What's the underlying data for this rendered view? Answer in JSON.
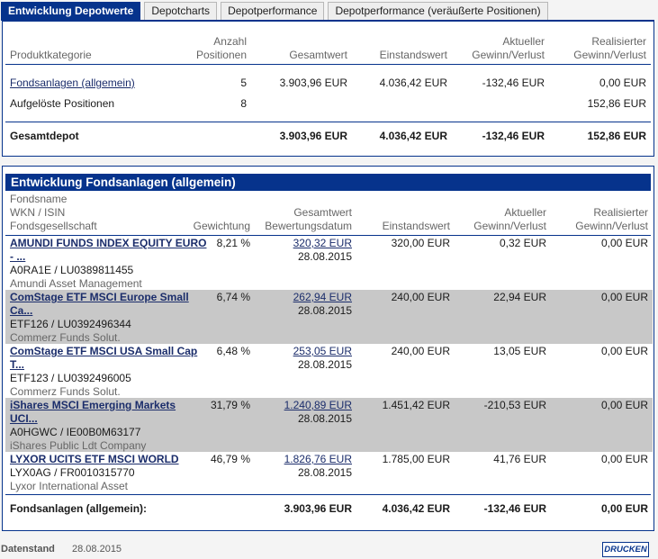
{
  "tabs": [
    {
      "label": "Entwicklung Depotwerte"
    },
    {
      "label": "Depotcharts"
    },
    {
      "label": "Depotperformance"
    },
    {
      "label": "Depotperformance (veräußerte Positionen)"
    }
  ],
  "summary": {
    "headers": {
      "category": "Produktkategorie",
      "positions_1": "Anzahl",
      "positions_2": "Positionen",
      "total": "Gesamtwert",
      "cost": "Einstandswert",
      "current_1": "Aktueller",
      "current_2": "Gewinn/Verlust",
      "realized_1": "Realisierter",
      "realized_2": "Gewinn/Verlust"
    },
    "rows": [
      {
        "category": "Fondsanlagen (allgemein)",
        "positions": "5",
        "total": "3.903,96 EUR",
        "cost": "4.036,42 EUR",
        "current": "-132,46 EUR",
        "realized": "0,00 EUR"
      },
      {
        "category": "Aufgelöste Positionen",
        "positions": "8",
        "total": "",
        "cost": "",
        "current": "",
        "realized": "152,86 EUR"
      }
    ],
    "total_row": {
      "label": "Gesamtdepot",
      "total": "3.903,96 EUR",
      "cost": "4.036,42 EUR",
      "current": "-132,46 EUR",
      "realized": "152,86 EUR"
    }
  },
  "funds": {
    "title": "Entwicklung Fondsanlagen (allgemein)",
    "headers": {
      "name": "Fondsname",
      "wkn": "WKN / ISIN",
      "company": "Fondsgesellschaft",
      "weight": "Gewichtung",
      "total_1": "Gesamtwert",
      "total_2": "Bewertungsdatum",
      "cost": "Einstandswert",
      "current_1": "Aktueller",
      "current_2": "Gewinn/Verlust",
      "realized_1": "Realisierter",
      "realized_2": "Gewinn/Verlust"
    },
    "rows": [
      {
        "name_1": "AMUNDI FUNDS INDEX EQUITY EURO",
        "name_2": "- ...",
        "ids": "A0RA1E / LU0389811455",
        "company": "Amundi Asset Management",
        "weight": "8,21 %",
        "total": "320,32 EUR",
        "date": "28.08.2015",
        "cost": "320,00 EUR",
        "current": "0,32 EUR",
        "realized": "0,00 EUR"
      },
      {
        "name_1": "ComStage ETF MSCI Europe Small",
        "name_2": "Ca...",
        "ids": "ETF126 / LU0392496344",
        "company": "Commerz Funds Solut.",
        "weight": "6,74 %",
        "total": "262,94 EUR",
        "date": "28.08.2015",
        "cost": "240,00 EUR",
        "current": "22,94 EUR",
        "realized": "0,00 EUR"
      },
      {
        "name_1": "ComStage ETF MSCI USA Small Cap",
        "name_2": "T...",
        "ids": "ETF123 / LU0392496005",
        "company": "Commerz Funds Solut.",
        "weight": "6,48 %",
        "total": "253,05 EUR",
        "date": "28.08.2015",
        "cost": "240,00 EUR",
        "current": "13,05 EUR",
        "realized": "0,00 EUR"
      },
      {
        "name_1": "iShares MSCI Emerging Markets",
        "name_2": "UCI...",
        "ids": "A0HGWC / IE00B0M63177",
        "company": "iShares Public Ldt Company",
        "weight": "31,79 %",
        "total": "1.240,89 EUR",
        "date": "28.08.2015",
        "cost": "1.451,42 EUR",
        "current": "-210,53 EUR",
        "realized": "0,00 EUR"
      },
      {
        "name_1": "LYXOR UCITS ETF MSCI WORLD",
        "name_2": "",
        "ids": "LYX0AG / FR0010315770",
        "company": "Lyxor International Asset",
        "weight": "46,79 %",
        "total": "1.826,76 EUR",
        "date": "28.08.2015",
        "cost": "1.785,00 EUR",
        "current": "41,76 EUR",
        "realized": "0,00 EUR"
      }
    ],
    "total_row": {
      "label": "Fondsanlagen (allgemein):",
      "total": "3.903,96 EUR",
      "cost": "4.036,42 EUR",
      "current": "-132,46 EUR",
      "realized": "0,00 EUR"
    }
  },
  "footer": {
    "label": "Datenstand",
    "date": "28.08.2015",
    "print_label": "DRUCKEN"
  }
}
